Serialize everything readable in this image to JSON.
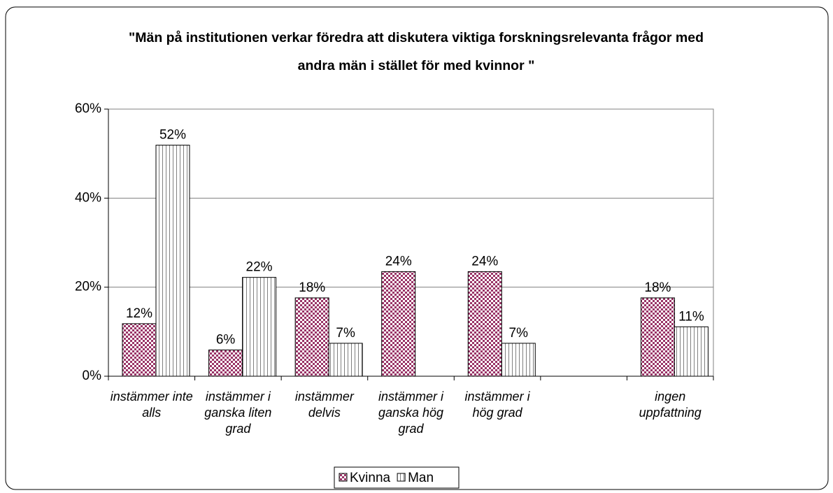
{
  "chart_data": {
    "type": "bar",
    "title": "\"Män på institutionen verkar föredra att diskutera viktiga forskningsrelevanta frågor med andra män i stället för med kvinnor \"",
    "categories": [
      "instämmer inte alls",
      "instämmer i ganska liten grad",
      "instämmer delvis",
      "instämmer i ganska hög grad",
      "instämmer i hög grad",
      null,
      "ingen uppfattning"
    ],
    "series": [
      {
        "name": "Kvinna",
        "color": "#993366",
        "values": [
          11.8,
          5.9,
          17.6,
          23.5,
          23.5,
          null,
          17.6
        ],
        "value_labels": [
          "12%",
          "6%",
          "18%",
          "24%",
          "24%",
          null,
          "18%"
        ]
      },
      {
        "name": "Man",
        "color": "#808080",
        "values": [
          51.9,
          22.2,
          7.4,
          null,
          7.4,
          null,
          11.1
        ],
        "value_labels": [
          "52%",
          "22%",
          "7%",
          null,
          "7%",
          null,
          "11%"
        ]
      }
    ],
    "ylim": [
      0,
      60
    ],
    "yticks": [
      {
        "value": 0,
        "label": "0%"
      },
      {
        "value": 20,
        "label": "20%"
      },
      {
        "value": 40,
        "label": "40%"
      },
      {
        "value": 60,
        "label": "60%"
      }
    ],
    "grid": true
  }
}
